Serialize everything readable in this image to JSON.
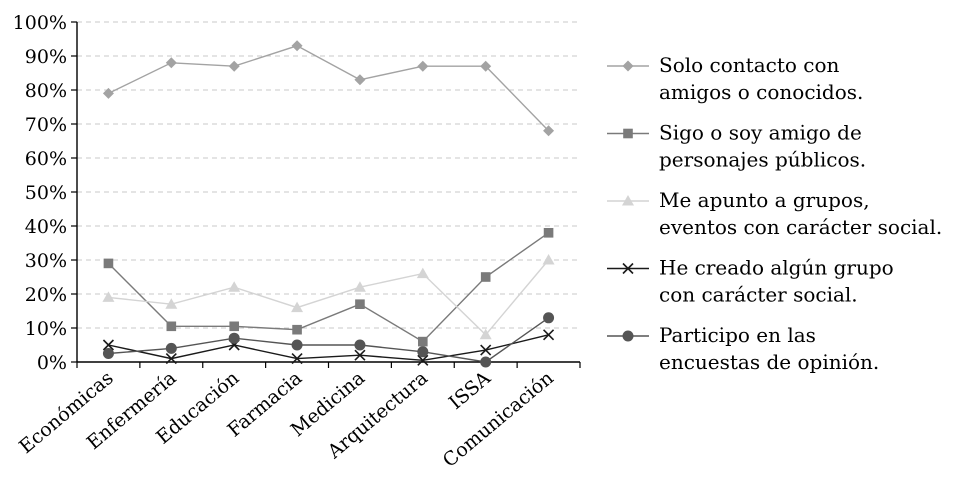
{
  "chart_data": {
    "type": "line",
    "title": "",
    "xlabel": "",
    "ylabel": "",
    "categories": [
      "Económicas",
      "Enfermería",
      "Educación",
      "Farmacia",
      "Medicina",
      "Arquitectura",
      "ISSA",
      "Comunicación"
    ],
    "ylim": [
      0,
      100
    ],
    "y_ticks": [
      "0%",
      "10%",
      "20%",
      "30%",
      "40%",
      "50%",
      "60%",
      "70%",
      "80%",
      "90%",
      "100%"
    ],
    "grid": "horizontal dashed",
    "legend_position": "right",
    "series": [
      {
        "name": "Solo contacto con amigos o conocidos.",
        "name_lines": [
          "Solo contacto con",
          "amigos o conocidos."
        ],
        "marker": "diamond",
        "color": "#a3a3a3",
        "values": [
          79,
          88,
          87,
          93,
          83,
          87,
          87,
          68
        ]
      },
      {
        "name": "Sigo o soy amigo de personajes públicos.",
        "name_lines": [
          "Sigo o soy amigo de",
          "personajes públicos."
        ],
        "marker": "square",
        "color": "#7a7a7a",
        "values": [
          29,
          10.5,
          10.5,
          9.5,
          17,
          6,
          25,
          38
        ]
      },
      {
        "name": "Me apunto a grupos, eventos con carácter social.",
        "name_lines": [
          "Me apunto a grupos,",
          "eventos con carácter social."
        ],
        "marker": "triangle",
        "color": "#d4d4d4",
        "values": [
          19,
          17,
          22,
          16,
          22,
          26,
          8,
          30
        ]
      },
      {
        "name": "He creado algún grupo con carácter social.",
        "name_lines": [
          "He creado algún grupo",
          "con carácter social."
        ],
        "marker": "x",
        "color": "#1a1a1a",
        "values": [
          5,
          1,
          5,
          1,
          2,
          0.5,
          3.5,
          8
        ]
      },
      {
        "name": "Participo en las encuestas de opinión.",
        "name_lines": [
          "Participo en las",
          "encuestas de opinión."
        ],
        "marker": "circle",
        "color": "#555555",
        "values": [
          2.5,
          4,
          7,
          5,
          5,
          3,
          0,
          13
        ]
      }
    ]
  }
}
